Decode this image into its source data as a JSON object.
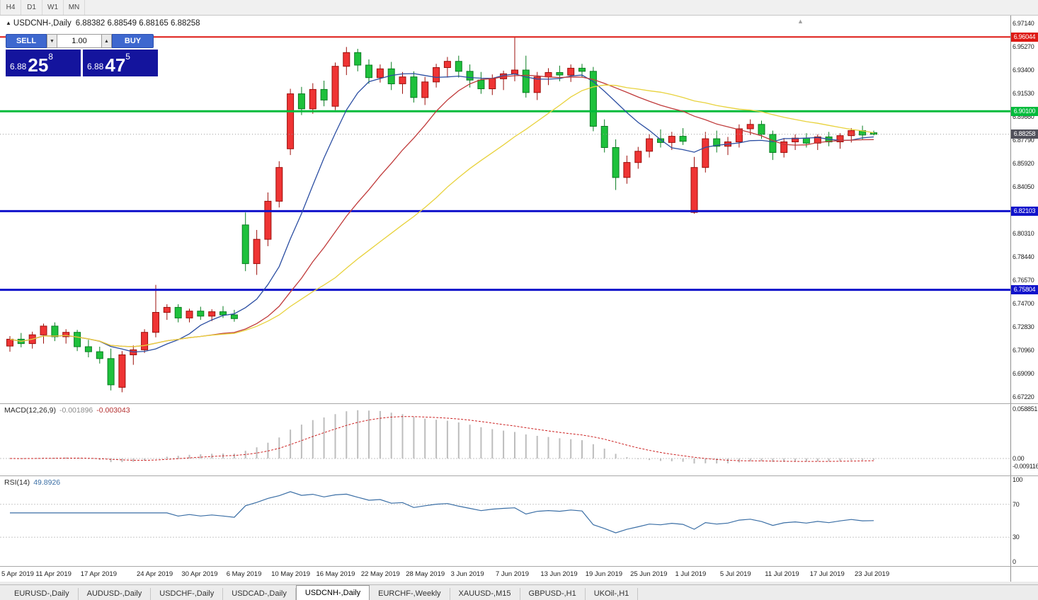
{
  "toolbar": {
    "timeframes": [
      "H4",
      "D1",
      "W1",
      "MN"
    ]
  },
  "chart": {
    "title": "USDCNH-,Daily",
    "ohlc": "6.88382 6.88549 6.88165 6.88258",
    "title_arrow": "▲",
    "shift_marker": "▲"
  },
  "trade_panel": {
    "sell_label": "SELL",
    "buy_label": "BUY",
    "volume": "1.00",
    "down_glyph": "▼",
    "up_glyph": "▲",
    "bid": {
      "prefix": "6.88",
      "big": "25",
      "sup": "8"
    },
    "ask": {
      "prefix": "6.88",
      "big": "47",
      "sup": "5"
    }
  },
  "macd": {
    "label": "MACD(12,26,9)",
    "value_main": "-0.001896",
    "value_signal": "-0.003043",
    "axis_labels": [
      "0.058851",
      "0.00",
      "-0.009116"
    ]
  },
  "rsi": {
    "label": "RSI(14)",
    "value": "49.8926",
    "axis_labels": [
      "100",
      "70",
      "30",
      "0"
    ]
  },
  "price_axis": {
    "labels": [
      "6.97140",
      "6.95270",
      "6.93400",
      "6.91530",
      "6.89660",
      "6.87790",
      "6.85920",
      "6.84050",
      "6.82180",
      "6.80310",
      "6.78440",
      "6.76570",
      "6.74700",
      "6.72830",
      "6.70960",
      "6.69090",
      "6.67220"
    ]
  },
  "tabs": [
    {
      "label": "EURUSD-,Daily",
      "active": false
    },
    {
      "label": "AUDUSD-,Daily",
      "active": false
    },
    {
      "label": "USDCHF-,Daily",
      "active": false
    },
    {
      "label": "USDCAD-,Daily",
      "active": false
    },
    {
      "label": "USDCNH-,Daily",
      "active": true
    },
    {
      "label": "EURCHF-,Weekly",
      "active": false
    },
    {
      "label": "XAUUSD-,M15",
      "active": false
    },
    {
      "label": "GBPUSD-,H1",
      "active": false
    },
    {
      "label": "UKOil-,H1",
      "active": false
    }
  ],
  "chart_data": {
    "type": "candlestick",
    "symbol": "USDCNH",
    "timeframe": "Daily",
    "ylim": [
      6.66945,
      6.9714
    ],
    "current_price": 6.88258,
    "current_tag_color": "#50505a",
    "colors": {
      "up": "#ef3434",
      "up_stroke": "#9c100c",
      "down": "#1ec13c",
      "down_stroke": "#0a7d22"
    },
    "levels": [
      {
        "price": 6.96044,
        "color": "#de1a15",
        "width": 2
      },
      {
        "price": 6.901,
        "color": "#00bb3b",
        "width": 3
      },
      {
        "price": 6.82103,
        "color": "#1113cb",
        "width": 3
      },
      {
        "price": 6.75804,
        "color": "#1113cb",
        "width": 3
      }
    ],
    "moving_averages": [
      {
        "period": 8,
        "color": "#2b4ea2"
      },
      {
        "period": 18,
        "color": "#c03a3a"
      },
      {
        "period": 30,
        "color": "#e8d23c"
      }
    ],
    "macd_colors": {
      "histogram": "#bdbdbd",
      "signal": "#cc2222"
    },
    "rsi_color": "#3a6ea5",
    "rsi_levels": [
      70,
      30
    ],
    "x_labels": [
      [
        "5 Apr 2019",
        0
      ],
      [
        "11 Apr 2019",
        4
      ],
      [
        "17 Apr 2019",
        8
      ],
      [
        "24 Apr 2019",
        13
      ],
      [
        "30 Apr 2019",
        17
      ],
      [
        "6 May 2019",
        21
      ],
      [
        "10 May 2019",
        25
      ],
      [
        "16 May 2019",
        29
      ],
      [
        "22 May 2019",
        33
      ],
      [
        "28 May 2019",
        37
      ],
      [
        "3 Jun 2019",
        41
      ],
      [
        "7 Jun 2019",
        45
      ],
      [
        "13 Jun 2019",
        49
      ],
      [
        "19 Jun 2019",
        53
      ],
      [
        "25 Jun 2019",
        57
      ],
      [
        "1 Jul 2019",
        61
      ],
      [
        "5 Jul 2019",
        65
      ],
      [
        "11 Jul 2019",
        69
      ],
      [
        "17 Jul 2019",
        73
      ],
      [
        "23 Jul 2019",
        77
      ]
    ],
    "candles": [
      [
        "5 Apr",
        6.713,
        6.721,
        6.7085,
        6.7185
      ],
      [
        "8 Apr",
        6.7185,
        6.7235,
        6.712,
        6.715
      ],
      [
        "9 Apr",
        6.715,
        6.7245,
        6.711,
        6.722
      ],
      [
        "10 Apr",
        6.722,
        6.731,
        6.715,
        6.729
      ],
      [
        "11 Apr",
        6.729,
        6.732,
        6.717,
        6.7205
      ],
      [
        "12 Apr",
        6.7205,
        6.7265,
        6.715,
        6.724
      ],
      [
        "15 Apr",
        6.724,
        6.726,
        6.709,
        6.7125
      ],
      [
        "16 Apr",
        6.7125,
        6.718,
        6.704,
        6.7085
      ],
      [
        "17 Apr",
        6.7085,
        6.7125,
        6.699,
        6.703
      ],
      [
        "18 Apr",
        6.703,
        6.711,
        6.6775,
        6.682
      ],
      [
        "19 Apr",
        6.68,
        6.709,
        6.676,
        6.706
      ],
      [
        "22 Apr",
        6.706,
        6.7135,
        6.698,
        6.71
      ],
      [
        "23 Apr",
        6.71,
        6.7265,
        6.7075,
        6.724
      ],
      [
        "24 Apr",
        6.724,
        6.762,
        6.72,
        6.74
      ],
      [
        "25 Apr",
        6.74,
        6.7465,
        6.734,
        6.744
      ],
      [
        "26 Apr",
        6.744,
        6.7465,
        6.732,
        6.7355
      ],
      [
        "29 Apr",
        6.7355,
        6.743,
        6.732,
        6.741
      ],
      [
        "30 Apr",
        6.741,
        6.7445,
        6.734,
        6.737
      ],
      [
        "1 May",
        6.737,
        6.7425,
        6.733,
        6.7405
      ],
      [
        "2 May",
        6.7405,
        6.745,
        6.7355,
        6.738
      ],
      [
        "3 May",
        6.738,
        6.742,
        6.7325,
        6.735
      ],
      [
        "6 May",
        6.81,
        6.82,
        6.773,
        6.779
      ],
      [
        "7 May",
        6.779,
        6.806,
        6.77,
        6.7985
      ],
      [
        "8 May",
        6.7985,
        6.836,
        6.793,
        6.829
      ],
      [
        "9 May",
        6.829,
        6.861,
        6.824,
        6.856
      ],
      [
        "10 May",
        6.871,
        6.919,
        6.866,
        6.915
      ],
      [
        "13 May",
        6.915,
        6.9205,
        6.898,
        6.903
      ],
      [
        "14 May",
        6.903,
        6.9235,
        6.899,
        6.9185
      ],
      [
        "15 May",
        6.9185,
        6.9255,
        6.905,
        6.91
      ],
      [
        "16 May",
        6.905,
        6.94,
        6.902,
        6.937
      ],
      [
        "17 May",
        6.937,
        6.9525,
        6.93,
        6.948
      ],
      [
        "20 May",
        6.948,
        6.951,
        6.933,
        6.938
      ],
      [
        "21 May",
        6.938,
        6.9425,
        6.923,
        6.928
      ],
      [
        "22 May",
        6.928,
        6.9385,
        6.924,
        6.935
      ],
      [
        "23 May",
        6.935,
        6.9405,
        6.918,
        6.923
      ],
      [
        "24 May",
        6.923,
        6.9325,
        6.915,
        6.9285
      ],
      [
        "27 May",
        6.9285,
        6.933,
        6.908,
        6.912
      ],
      [
        "28 May",
        6.912,
        6.9285,
        6.906,
        6.9245
      ],
      [
        "29 May",
        6.9245,
        6.939,
        6.92,
        6.936
      ],
      [
        "30 May",
        6.936,
        6.9445,
        6.928,
        6.941
      ],
      [
        "31 May",
        6.941,
        6.9455,
        6.928,
        6.933
      ],
      [
        "3 Jun",
        6.933,
        6.9385,
        6.92,
        6.926
      ],
      [
        "4 Jun",
        6.926,
        6.9325,
        6.915,
        6.919
      ],
      [
        "5 Jun",
        6.919,
        6.9305,
        6.914,
        6.927
      ],
      [
        "6 Jun",
        6.927,
        6.9335,
        6.918,
        6.931
      ],
      [
        "7 Jun",
        6.931,
        6.96,
        6.925,
        6.934
      ],
      [
        "10 Jun",
        6.934,
        6.9455,
        6.912,
        6.916
      ],
      [
        "11 Jun",
        6.916,
        6.9325,
        6.91,
        6.9285
      ],
      [
        "12 Jun",
        6.9285,
        6.9355,
        6.922,
        6.932
      ],
      [
        "13 Jun",
        6.932,
        6.9375,
        6.925,
        6.93
      ],
      [
        "14 Jun",
        6.93,
        6.9385,
        6.9245,
        6.9355
      ],
      [
        "17 Jun",
        6.9355,
        6.939,
        6.928,
        6.933
      ],
      [
        "18 Jun",
        6.933,
        6.9365,
        6.885,
        6.889
      ],
      [
        "19 Jun",
        6.889,
        6.8945,
        6.868,
        6.872
      ],
      [
        "20 Jun",
        6.872,
        6.8785,
        6.838,
        6.848
      ],
      [
        "21 Jun",
        6.848,
        6.8655,
        6.843,
        6.86
      ],
      [
        "24 Jun",
        6.86,
        6.8725,
        6.855,
        6.869
      ],
      [
        "25 Jun",
        6.869,
        6.8825,
        6.864,
        6.879
      ],
      [
        "26 Jun",
        6.879,
        6.8865,
        6.872,
        6.876
      ],
      [
        "27 Jun",
        6.876,
        6.8845,
        6.87,
        6.881
      ],
      [
        "28 Jun",
        6.881,
        6.8875,
        6.874,
        6.877
      ],
      [
        "1 Jul",
        6.82,
        6.8645,
        6.819,
        6.856
      ],
      [
        "2 Jul",
        6.856,
        6.8845,
        6.852,
        6.879
      ],
      [
        "3 Jul",
        6.879,
        6.8855,
        6.868,
        6.873
      ],
      [
        "4 Jul",
        6.873,
        6.8805,
        6.866,
        6.8765
      ],
      [
        "5 Jul",
        6.8765,
        6.8905,
        6.872,
        6.887
      ],
      [
        "8 Jul",
        6.887,
        6.8945,
        6.882,
        6.8905
      ],
      [
        "9 Jul",
        6.8905,
        6.8935,
        6.879,
        6.8825
      ],
      [
        "10 Jul",
        6.8825,
        6.8855,
        6.862,
        6.868
      ],
      [
        "11 Jul",
        6.868,
        6.8795,
        6.864,
        6.8765
      ],
      [
        "12 Jul",
        6.8765,
        6.8825,
        6.87,
        6.8795
      ],
      [
        "15 Jul",
        6.8795,
        6.8835,
        6.872,
        6.8755
      ],
      [
        "16 Jul",
        6.8755,
        6.8825,
        6.87,
        6.8805
      ],
      [
        "17 Jul",
        6.8805,
        6.8845,
        6.873,
        6.8765
      ],
      [
        "18 Jul",
        6.8765,
        6.8835,
        6.871,
        6.8815
      ],
      [
        "19 Jul",
        6.8815,
        6.8875,
        6.876,
        6.8855
      ],
      [
        "22 Jul",
        6.8855,
        6.8895,
        6.878,
        6.882
      ],
      [
        "23 Jul",
        6.88382,
        6.88549,
        6.88165,
        6.88258
      ]
    ]
  }
}
